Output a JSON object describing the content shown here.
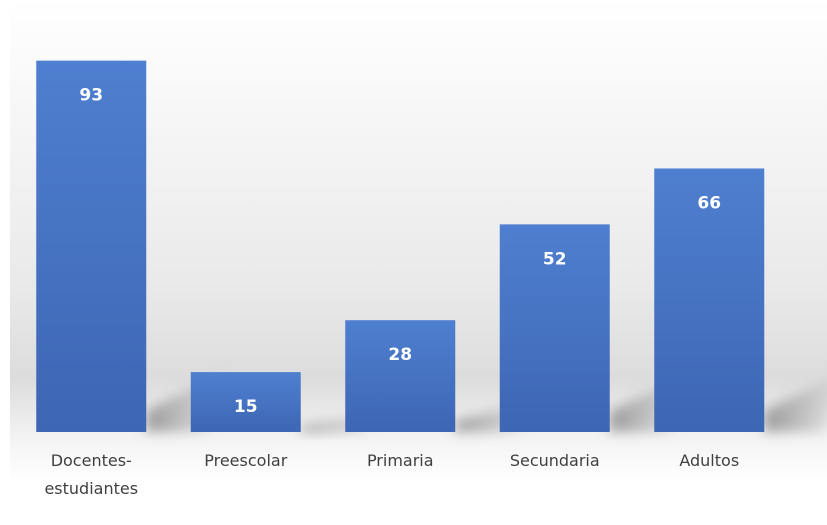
{
  "chart_data": {
    "type": "bar",
    "categories": [
      "Docentes-estudiantes",
      "Preescolar",
      "Primaria",
      "Secundaria",
      "Adultos"
    ],
    "category_lines": [
      [
        "Docentes-",
        "estudiantes"
      ],
      [
        "Preescolar"
      ],
      [
        "Primaria"
      ],
      [
        "Secundaria"
      ],
      [
        "Adultos"
      ]
    ],
    "values": [
      93,
      15,
      28,
      52,
      66
    ],
    "data_labels": [
      "93",
      "15",
      "28",
      "52",
      "66"
    ],
    "title": "",
    "xlabel": "",
    "ylabel": "",
    "ylim": [
      0,
      100
    ],
    "grid": false,
    "legend": "none",
    "colors": {
      "bar": "#4472c4",
      "bar_top": "#4f7fd0",
      "bar_bottom": "#3d66b4",
      "shadow": "#9a9a9a"
    }
  }
}
